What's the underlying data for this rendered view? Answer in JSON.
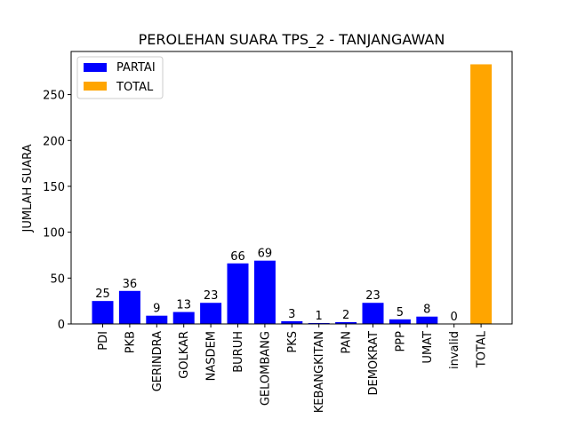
{
  "chart_data": {
    "type": "bar",
    "title": "PEROLEHAN SUARA TPS_2 - TANJANGAWAN",
    "xlabel": "",
    "ylabel": "JUMLAH SUARA",
    "categories": [
      "PDI",
      "PKB",
      "GERINDRA",
      "GOLKAR",
      "NASDEM",
      "BURUH",
      "GELOMBANG",
      "PKS",
      "KEBANGKITAN",
      "PAN",
      "DEMOKRAT",
      "PPP",
      "UMAT",
      "invalid",
      "TOTAL"
    ],
    "series": [
      {
        "name": "PARTAI",
        "color": "#0000ff",
        "values": [
          25,
          36,
          9,
          13,
          23,
          66,
          69,
          3,
          1,
          2,
          23,
          5,
          8,
          0,
          null
        ],
        "data_labels": [
          "25",
          "36",
          "9",
          "13",
          "23",
          "66",
          "69",
          "3",
          "1",
          "2",
          "23",
          "5",
          "8",
          "0",
          ""
        ]
      },
      {
        "name": "TOTAL",
        "color": "#ffa500",
        "values": [
          null,
          null,
          null,
          null,
          null,
          null,
          null,
          null,
          null,
          null,
          null,
          null,
          null,
          null,
          283
        ]
      }
    ],
    "ylim": [
      0,
      297
    ],
    "yticks": [
      0,
      50,
      100,
      150,
      200,
      250
    ],
    "legend_position": "top-left",
    "grid": false
  }
}
